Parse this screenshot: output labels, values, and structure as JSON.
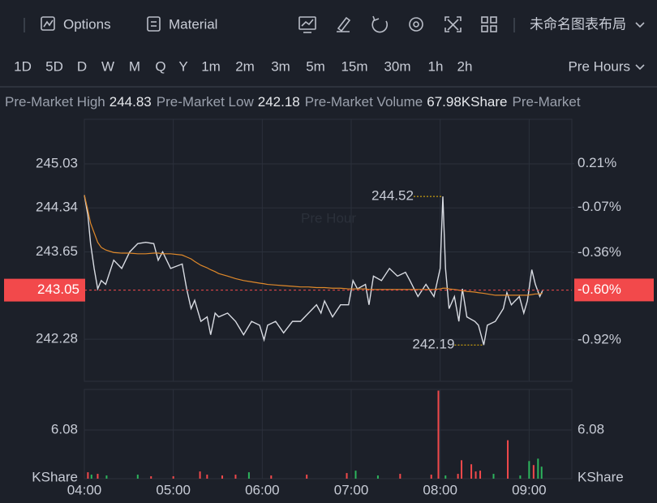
{
  "toolbar": {
    "options": "Options",
    "material": "Material",
    "layout_name": "未命名图表布局"
  },
  "timeframes": {
    "items": [
      "1D",
      "5D",
      "D",
      "W",
      "M",
      "Q",
      "Y",
      "1m",
      "2m",
      "3m",
      "5m",
      "15m",
      "30m",
      "1h",
      "2h"
    ],
    "active": "1D",
    "session": "Pre Hours"
  },
  "stats": [
    {
      "label": "Pre-Market High",
      "value": "244.83"
    },
    {
      "label": "Pre-Market Low",
      "value": "242.18"
    },
    {
      "label": "Pre-Market Volume",
      "value": "67.98KShare"
    },
    {
      "label": "Pre-Market"
    }
  ],
  "watermark": "Pre Hour",
  "chart_data": [
    {
      "type": "line",
      "x": [
        4.0,
        4.04,
        4.07,
        4.11,
        4.15,
        4.19,
        4.24,
        4.33,
        4.42,
        4.51,
        4.6,
        4.69,
        4.78,
        4.83,
        4.88,
        4.97,
        5.1,
        5.15,
        5.2,
        5.24,
        5.31,
        5.38,
        5.42,
        5.47,
        5.51,
        5.61,
        5.7,
        5.79,
        5.88,
        5.97,
        6.02,
        6.06,
        6.15,
        6.24,
        6.34,
        6.43,
        6.52,
        6.61,
        6.66,
        6.7,
        6.79,
        6.88,
        6.97,
        7.02,
        7.07,
        7.16,
        7.2,
        7.25,
        7.34,
        7.43,
        7.52,
        7.61,
        7.66,
        7.75,
        7.84,
        7.93,
        8.0,
        8.03,
        8.06,
        8.1,
        8.16,
        8.21,
        8.25,
        8.3,
        8.39,
        8.43,
        8.49,
        8.53,
        8.62,
        8.71,
        8.75,
        8.8,
        8.89,
        8.94,
        8.98,
        9.03,
        9.07,
        9.12,
        9.15
      ],
      "series": [
        {
          "color": "#d9dce3",
          "values": [
            244.54,
            244.22,
            243.78,
            243.39,
            243.07,
            243.2,
            243.14,
            243.52,
            243.39,
            243.65,
            243.78,
            243.8,
            243.78,
            243.52,
            243.65,
            243.39,
            243.46,
            243.07,
            242.76,
            242.89,
            242.56,
            242.63,
            242.35,
            242.69,
            242.63,
            242.69,
            242.56,
            242.35,
            242.56,
            242.5,
            242.27,
            242.5,
            242.56,
            242.38,
            242.56,
            242.56,
            242.69,
            242.82,
            242.69,
            242.88,
            242.63,
            242.82,
            242.82,
            243.2,
            243.07,
            243.14,
            242.82,
            243.27,
            243.2,
            243.39,
            243.27,
            243.33,
            243.2,
            242.95,
            243.14,
            242.95,
            243.39,
            244.52,
            243.39,
            242.76,
            242.95,
            242.56,
            243.07,
            242.63,
            242.56,
            242.5,
            242.19,
            242.5,
            242.56,
            242.76,
            243.01,
            242.82,
            242.95,
            242.69,
            242.88,
            243.37,
            243.14,
            242.95,
            243.04
          ]
        },
        {
          "color": "#e0892a",
          "values": [
            244.54,
            244.3,
            244.1,
            243.95,
            243.8,
            243.72,
            243.68,
            243.64,
            243.63,
            243.63,
            243.62,
            243.62,
            243.63,
            243.63,
            243.62,
            243.62,
            243.6,
            243.57,
            243.54,
            243.5,
            243.44,
            243.4,
            243.37,
            243.34,
            243.31,
            243.27,
            243.23,
            243.2,
            243.18,
            243.16,
            243.15,
            243.14,
            243.13,
            243.12,
            243.11,
            243.1,
            243.1,
            243.09,
            243.09,
            243.09,
            243.08,
            243.08,
            243.07,
            243.07,
            243.07,
            243.07,
            243.06,
            243.06,
            243.06,
            243.06,
            243.06,
            243.06,
            243.06,
            243.06,
            243.06,
            243.06,
            243.07,
            243.08,
            243.08,
            243.07,
            243.06,
            243.05,
            243.04,
            243.03,
            243.02,
            243.01,
            243.0,
            242.99,
            242.97,
            242.97,
            242.97,
            242.97,
            242.97,
            242.97,
            242.97,
            242.98,
            242.99,
            242.99,
            243.0
          ]
        }
      ],
      "xlim": [
        4,
        9.48
      ],
      "xticks": [
        {
          "value": 4,
          "label": "04:00"
        },
        {
          "value": 5,
          "label": "05:00"
        },
        {
          "value": 6,
          "label": "06:00"
        },
        {
          "value": 7,
          "label": "07:00"
        },
        {
          "value": 8,
          "label": "08:00"
        },
        {
          "value": 9,
          "label": "09:00"
        }
      ],
      "ylim": [
        241.62,
        245.73
      ],
      "yticks": [
        245.03,
        244.34,
        243.65,
        242.28
      ],
      "y2lim": [
        -1.186,
        0.495
      ],
      "y2ticks": [
        {
          "value": 0.21,
          "label": "0.21%"
        },
        {
          "value": -0.07,
          "label": "-0.07%"
        },
        {
          "value": -0.36,
          "label": "-0.36%"
        },
        {
          "value": -0.92,
          "label": "-0.92%"
        }
      ],
      "last": {
        "value": 243.05,
        "change": {
          "value": -0.6,
          "label": "-0.60%"
        }
      },
      "annotations": [
        {
          "x": 8.03,
          "value": 244.52
        },
        {
          "x": 8.49,
          "value": 242.19
        }
      ],
      "up_color": "#2db55d",
      "down_color": "#f2494b",
      "grid": true
    },
    {
      "type": "bar",
      "x": [
        4.04,
        4.08,
        4.15,
        4.25,
        4.6,
        4.75,
        5.0,
        5.3,
        5.38,
        5.55,
        5.7,
        5.85,
        6.1,
        6.5,
        6.95,
        7.05,
        7.3,
        7.55,
        7.9,
        7.98,
        8.06,
        8.2,
        8.24,
        8.35,
        8.4,
        8.45,
        8.6,
        8.76,
        8.9,
        9.0,
        9.05,
        9.1,
        9.14
      ],
      "values": [
        0.8,
        0.5,
        0.6,
        0.4,
        0.5,
        0.3,
        0.3,
        0.9,
        0.5,
        0.4,
        0.5,
        0.8,
        0.4,
        0.5,
        0.7,
        1.0,
        0.4,
        0.6,
        0.5,
        11.0,
        0.4,
        0.6,
        2.3,
        1.8,
        0.9,
        1.0,
        0.6,
        4.8,
        0.4,
        2.2,
        1.7,
        2.5,
        1.5
      ],
      "bar_colors": [
        "#f2494b",
        "#2db55d",
        "#f2494b",
        "#2db55d",
        "#2db55d",
        "#f2494b",
        "#f2494b",
        "#f2494b",
        "#f2494b",
        "#f2494b",
        "#f2494b",
        "#2db55d",
        "#f2494b",
        "#f2494b",
        "#f2494b",
        "#2db55d",
        "#2db55d",
        "#f2494b",
        "#f2494b",
        "#f2494b",
        "#2db55d",
        "#f2494b",
        "#f2494b",
        "#f2494b",
        "#f2494b",
        "#f2494b",
        "#2db55d",
        "#f2494b",
        "#2db55d",
        "#2db55d",
        "#f2494b",
        "#2db55d",
        "#2db55d"
      ],
      "xlim": [
        4,
        9.48
      ],
      "ylim": [
        0,
        11.15
      ],
      "yticks": [
        6.08
      ],
      "y_unit": "KShare"
    }
  ]
}
